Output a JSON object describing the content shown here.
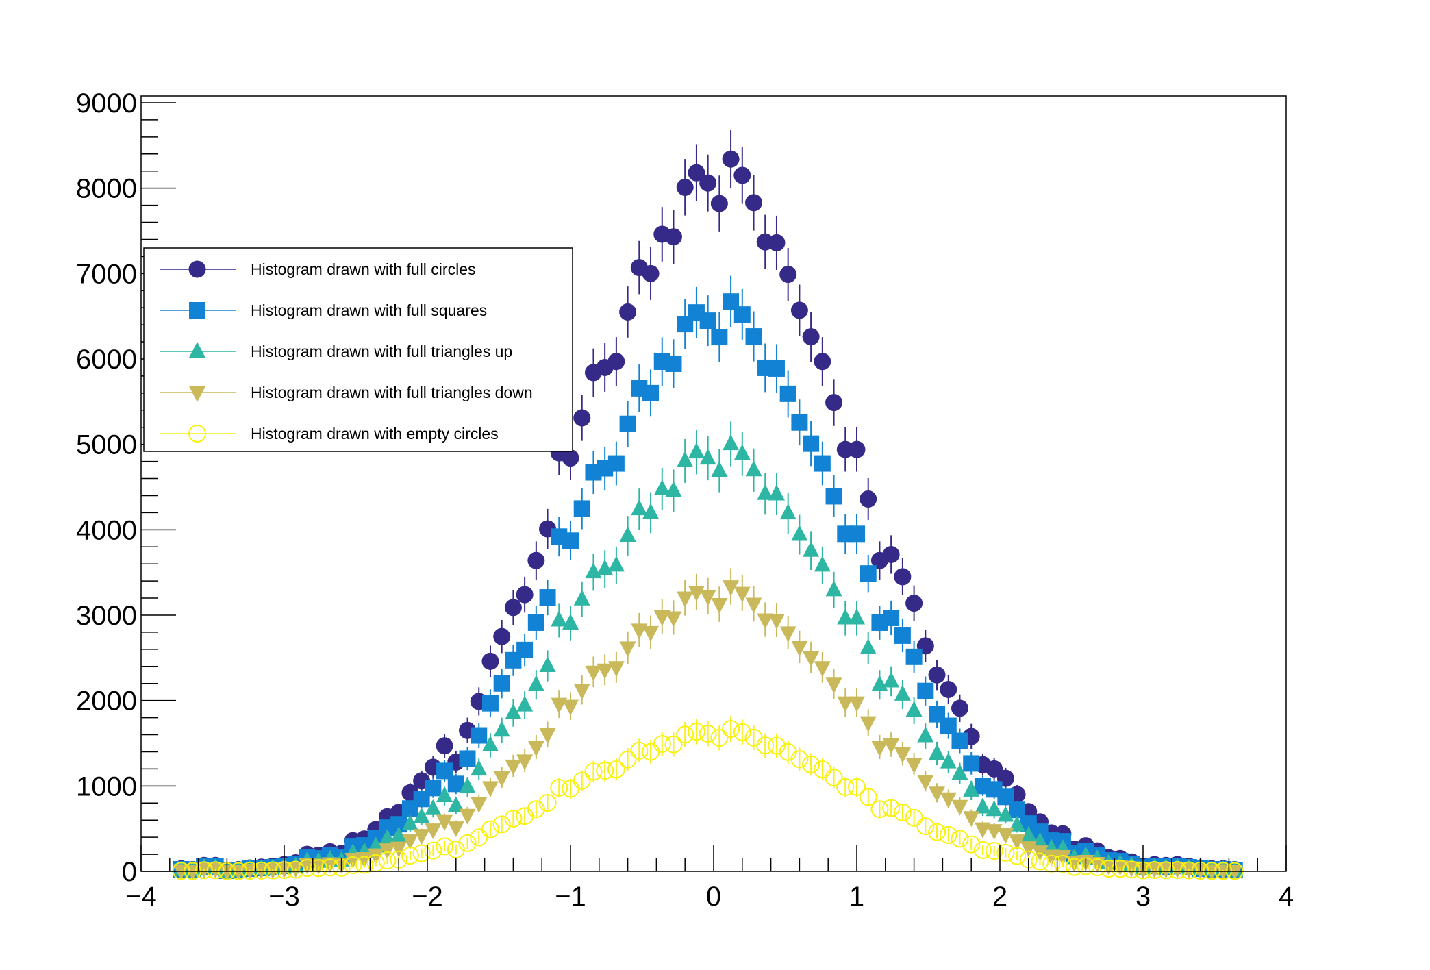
{
  "chart_data": {
    "type": "scatter",
    "title": "",
    "xlabel": "",
    "ylabel": "",
    "xlim": [
      -4,
      4
    ],
    "ylim": [
      0,
      9080
    ],
    "bins": {
      "count": 100,
      "min": -4,
      "max": 4,
      "first_center": -3.72,
      "width": 0.08
    },
    "x_ticks": [
      {
        "v": -4,
        "label": "−4"
      },
      {
        "v": -3,
        "label": "−3"
      },
      {
        "v": -2,
        "label": "−2"
      },
      {
        "v": -1,
        "label": "−1"
      },
      {
        "v": 0,
        "label": "0"
      },
      {
        "v": 1,
        "label": "1"
      },
      {
        "v": 2,
        "label": "2"
      },
      {
        "v": 3,
        "label": "3"
      },
      {
        "v": 4,
        "label": "4"
      }
    ],
    "y_ticks": [
      {
        "v": 0,
        "label": "0"
      },
      {
        "v": 1000,
        "label": "1000"
      },
      {
        "v": 2000,
        "label": "2000"
      },
      {
        "v": 3000,
        "label": "3000"
      },
      {
        "v": 4000,
        "label": "4000"
      },
      {
        "v": 5000,
        "label": "5000"
      },
      {
        "v": 6000,
        "label": "6000"
      },
      {
        "v": 7000,
        "label": "7000"
      },
      {
        "v": 8000,
        "label": "8000"
      },
      {
        "v": 9000,
        "label": "9000"
      }
    ],
    "grid": false,
    "legend_placement": "upper-left",
    "series": [
      {
        "name": "Histogram drawn with full circles",
        "marker": "full-circle",
        "color": "#352a87",
        "values": [
          30,
          20,
          70,
          70,
          10,
          20,
          40,
          50,
          60,
          80,
          100,
          200,
          190,
          230,
          210,
          360,
          380,
          490,
          640,
          690,
          920,
          1060,
          1220,
          1470,
          1280,
          1650,
          1990,
          2460,
          2750,
          3090,
          3240,
          3640,
          4010,
          4900,
          4840,
          5310,
          5840,
          5900,
          5970,
          6550,
          7070,
          7000,
          7460,
          7430,
          8010,
          8180,
          8060,
          7820,
          8340,
          8150,
          7830,
          7370,
          7360,
          6990,
          6570,
          6260,
          5970,
          5490,
          4940,
          4940,
          4360,
          3640,
          3710,
          3450,
          3140,
          2640,
          2300,
          2130,
          1910,
          1580,
          1250,
          1200,
          1090,
          900,
          700,
          580,
          450,
          440,
          260,
          300,
          240,
          160,
          150,
          110,
          60,
          80,
          70,
          80,
          60,
          40,
          30,
          30,
          20
        ]
      },
      {
        "name": "Histogram drawn with full squares",
        "marker": "full-square",
        "color": "#1283d4",
        "values": [
          24,
          16,
          56,
          56,
          8,
          16,
          32,
          40,
          48,
          64,
          80,
          160,
          152,
          184,
          168,
          288,
          304,
          392,
          512,
          552,
          736,
          848,
          976,
          1176,
          1024,
          1320,
          1592,
          1968,
          2200,
          2472,
          2592,
          2912,
          3208,
          3920,
          3872,
          4248,
          4672,
          4720,
          4776,
          5240,
          5656,
          5600,
          5968,
          5944,
          6408,
          6544,
          6448,
          6256,
          6672,
          6520,
          6264,
          5896,
          5888,
          5592,
          5256,
          5008,
          4776,
          4392,
          3952,
          3952,
          3488,
          2912,
          2968,
          2760,
          2512,
          2112,
          1840,
          1704,
          1528,
          1264,
          1000,
          960,
          872,
          720,
          560,
          464,
          360,
          352,
          208,
          240,
          192,
          128,
          120,
          88,
          48,
          64,
          56,
          64,
          48,
          32,
          24,
          24,
          16
        ]
      },
      {
        "name": "Histogram drawn with full triangles up",
        "marker": "full-triangle-up",
        "color": "#2db6a4",
        "values": [
          18,
          12,
          42,
          42,
          6,
          12,
          24,
          30,
          36,
          48,
          60,
          120,
          114,
          138,
          126,
          216,
          228,
          294,
          384,
          414,
          552,
          636,
          732,
          882,
          768,
          990,
          1194,
          1476,
          1650,
          1854,
          1944,
          2184,
          2406,
          2940,
          2904,
          3186,
          3504,
          3540,
          3582,
          3930,
          4242,
          4200,
          4476,
          4458,
          4806,
          4908,
          4836,
          4692,
          5004,
          4890,
          4698,
          4422,
          4416,
          4194,
          3942,
          3756,
          3582,
          3294,
          2964,
          2964,
          2616,
          2184,
          2226,
          2070,
          1884,
          1584,
          1380,
          1278,
          1146,
          948,
          750,
          720,
          654,
          540,
          420,
          348,
          270,
          264,
          156,
          180,
          144,
          96,
          90,
          66,
          36,
          48,
          42,
          48,
          36,
          24,
          18,
          18,
          12
        ]
      },
      {
        "name": "Histogram drawn with full triangles down",
        "marker": "full-triangle-down",
        "color": "#c9b95a",
        "values": [
          12,
          8,
          28,
          28,
          4,
          8,
          16,
          20,
          24,
          32,
          40,
          80,
          76,
          92,
          84,
          144,
          152,
          196,
          256,
          276,
          368,
          424,
          488,
          588,
          512,
          660,
          796,
          984,
          1100,
          1236,
          1296,
          1456,
          1604,
          1960,
          1936,
          2124,
          2336,
          2360,
          2388,
          2620,
          2828,
          2800,
          2984,
          2972,
          3204,
          3272,
          3224,
          3128,
          3336,
          3260,
          3132,
          2948,
          2944,
          2796,
          2628,
          2504,
          2388,
          2196,
          1976,
          1976,
          1744,
          1456,
          1484,
          1380,
          1256,
          1056,
          920,
          852,
          764,
          632,
          500,
          480,
          436,
          360,
          280,
          232,
          180,
          176,
          104,
          120,
          96,
          64,
          60,
          44,
          24,
          32,
          28,
          32,
          24,
          16,
          12,
          12,
          8
        ]
      },
      {
        "name": "Histogram drawn with empty circles",
        "marker": "open-circle",
        "color": "#f9f10f",
        "values": [
          6,
          4,
          14,
          14,
          2,
          4,
          8,
          10,
          12,
          16,
          20,
          40,
          38,
          46,
          42,
          72,
          76,
          98,
          128,
          138,
          184,
          212,
          244,
          294,
          256,
          330,
          398,
          492,
          550,
          618,
          648,
          728,
          802,
          980,
          968,
          1062,
          1168,
          1180,
          1194,
          1310,
          1414,
          1400,
          1492,
          1486,
          1602,
          1636,
          1612,
          1564,
          1668,
          1630,
          1566,
          1474,
          1472,
          1398,
          1314,
          1252,
          1194,
          1098,
          988,
          988,
          872,
          728,
          742,
          690,
          628,
          528,
          460,
          426,
          382,
          316,
          250,
          240,
          218,
          180,
          140,
          116,
          90,
          88,
          52,
          60,
          48,
          32,
          30,
          22,
          12,
          16,
          14,
          16,
          12,
          8,
          6,
          6,
          4
        ]
      }
    ]
  }
}
